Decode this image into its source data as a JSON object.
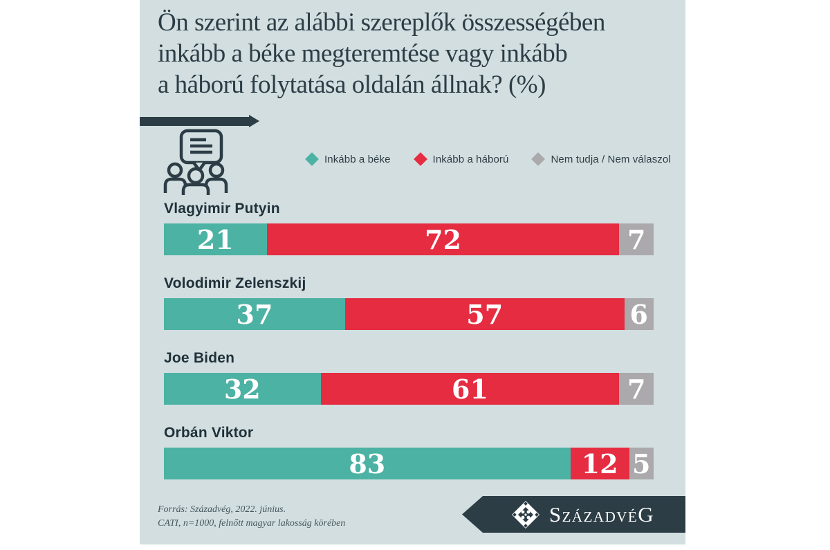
{
  "title": {
    "lines": [
      "Ön szerint az alábbi szereplők összességében",
      "inkább a béke megteremtése vagy inkább",
      "a háború folytatása oldalán állnak? (%)"
    ]
  },
  "colors": {
    "card_bg": "#d2dee0",
    "dark_slate": "#2c3d46",
    "peace_teal": "#4cb2a3",
    "war_red": "#e52c41",
    "dontknow_gray": "#aba9ab",
    "label_text": "#20313a"
  },
  "legend": {
    "items": [
      {
        "label": "Inkább a béke",
        "color": "#4cb2a3"
      },
      {
        "label": "Inkább a háború",
        "color": "#e52c41"
      },
      {
        "label": "Nem tudja / Nem válaszol",
        "color": "#aba9ab"
      }
    ]
  },
  "chart_data": {
    "type": "bar",
    "orientation": "horizontal",
    "stacked": true,
    "unit": "%",
    "xlim": [
      0,
      100
    ],
    "grid": false,
    "legend_position": "top",
    "title": "Ön szerint az alábbi szereplők összességében inkább a béke megteremtése vagy inkább a háború folytatása oldalán állnak? (%)",
    "categories": [
      "Vlagyimir Putyin",
      "Volodimir Zelenszkij",
      "Joe Biden",
      "Orbán Viktor"
    ],
    "series": [
      {
        "name": "Inkább a béke",
        "color": "#4cb2a3",
        "values": [
          21,
          37,
          32,
          83
        ]
      },
      {
        "name": "Inkább a háború",
        "color": "#e52c41",
        "values": [
          72,
          57,
          61,
          12
        ]
      },
      {
        "name": "Nem tudja / Nem válaszol",
        "color": "#aba9ab",
        "values": [
          7,
          6,
          7,
          5
        ]
      }
    ]
  },
  "footer": {
    "source_lines": [
      "Forrás: Századvég, 2022. június.",
      "CATI, n=1000, felnőtt magyar lakosság körében"
    ],
    "logo": {
      "lead": "S",
      "mid": "ZÁZADVÉ",
      "tail": "G"
    }
  },
  "icons": {
    "people_group": "survey-people-icon",
    "brand_diamond": "szazadveg-diamond-icon"
  }
}
